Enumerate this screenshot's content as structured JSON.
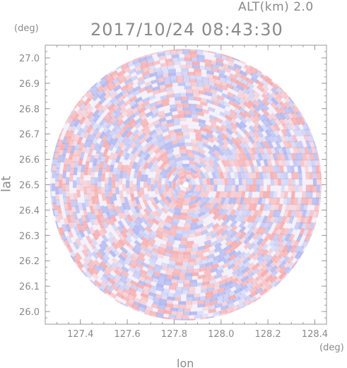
{
  "header": {
    "alt": "ALT(km) 2.0",
    "time": "2017/10/24 08:43:30"
  },
  "axes": {
    "y_unit": "(deg)",
    "x_unit": "(deg)",
    "y_label": "lat",
    "x_label": "lon"
  },
  "colors": {
    "positive": "#f7a5a5",
    "negative": "#a9b2ef",
    "axis": "#9a9a9a",
    "text": "#8a8a8a"
  },
  "chart_data": {
    "type": "heatmap",
    "title": "2017/10/24 08:43:30",
    "subtitle": "ALT(km) 2.0",
    "xlabel": "lon",
    "ylabel": "lat",
    "x_unit": "(deg)",
    "y_unit": "(deg)",
    "xlim": [
      127.25,
      128.45
    ],
    "ylim": [
      25.95,
      27.05
    ],
    "x_ticks": [
      "127.4",
      "127.6",
      "127.8",
      "128.0",
      "128.2",
      "128.4"
    ],
    "x_tick_values": [
      127.4,
      127.6,
      127.8,
      128.0,
      128.2,
      128.4
    ],
    "y_ticks": [
      "26.0",
      "26.1",
      "26.2",
      "26.3",
      "26.4",
      "26.5",
      "26.6",
      "26.7",
      "26.8",
      "26.9",
      "27.0"
    ],
    "y_tick_values": [
      26.0,
      26.1,
      26.2,
      26.3,
      26.4,
      26.5,
      26.6,
      26.7,
      26.8,
      26.9,
      27.0
    ],
    "domain_center": [
      127.85,
      26.5
    ],
    "domain_radius_deg": 0.535,
    "colormap": "red-white-blue (diverging)"
  }
}
